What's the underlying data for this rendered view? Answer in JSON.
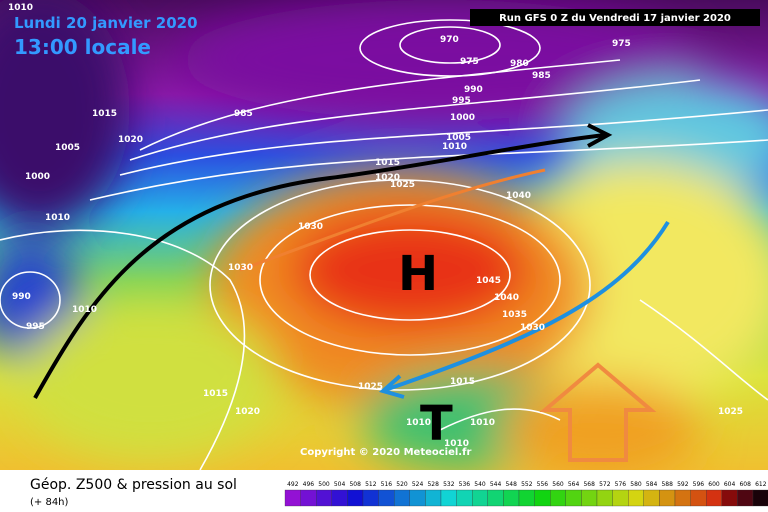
{
  "header": {
    "date_line": "Lundi 20 janvier 2020",
    "time_line": "13:00 locale",
    "run": "Run GFS 0 Z du Vendredi 17 janvier 2020"
  },
  "map": {
    "pressure_labels": [
      1010,
      970,
      975,
      975,
      980,
      985,
      990,
      995,
      1000,
      1005,
      1010,
      985,
      1015,
      1020,
      1005,
      1000,
      1010,
      990,
      995,
      1010,
      1015,
      1020,
      1030,
      1030,
      1015,
      1020,
      1025,
      1040,
      1045,
      1040,
      1035,
      1030,
      1025,
      1015,
      1010,
      1010,
      1010,
      1025
    ],
    "high": "H",
    "low": "T",
    "copyright": "Copyright © 2020 Meteociel.fr"
  },
  "footer": {
    "title": "Géop. Z500 & pression au sol",
    "lead": "(+ 84h)",
    "scale": [
      492,
      496,
      500,
      504,
      508,
      512,
      516,
      520,
      524,
      528,
      532,
      536,
      540,
      544,
      548,
      552,
      556,
      560,
      564,
      568,
      572,
      576,
      580,
      584,
      588,
      592,
      596,
      600,
      604,
      608,
      612
    ]
  }
}
